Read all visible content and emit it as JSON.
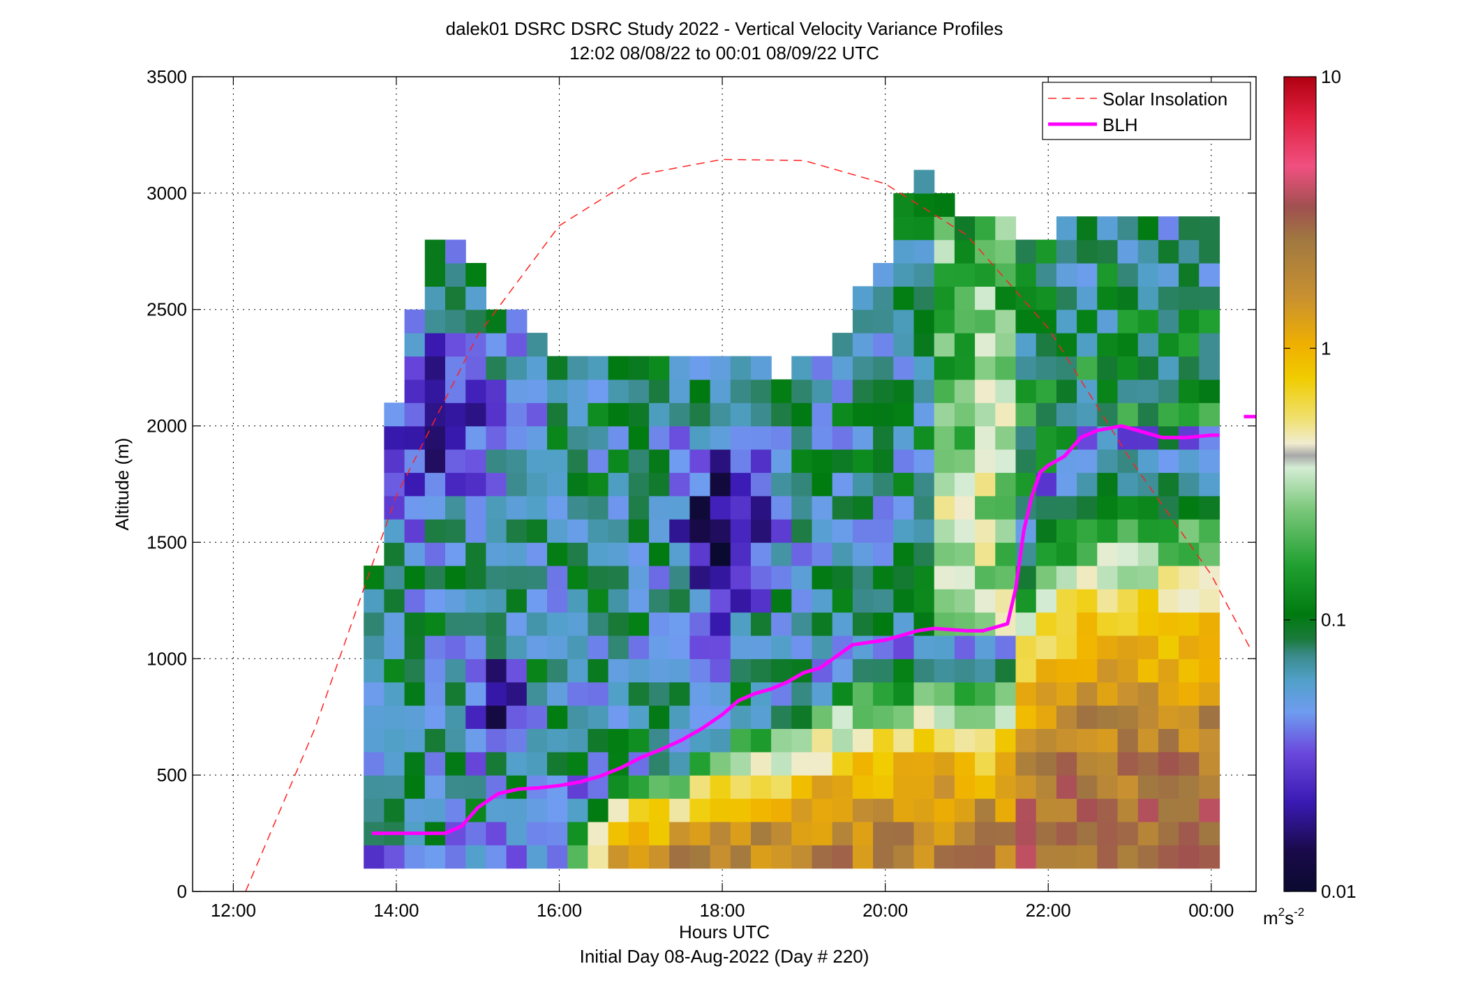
{
  "chart_data": {
    "type": "heatmap",
    "title": "dalek01 DSRC DSRC Study 2022 - Vertical Velocity Variance Profiles",
    "subtitle": "12:02 08/08/22 to 00:01 08/09/22  UTC",
    "xlabel": "Hours UTC",
    "xlabel2": "Initial Day 08-Aug-2022 (Day # 220)",
    "ylabel": "Altitude (m)",
    "xlim": [
      11.5,
      24.55
    ],
    "ylim": [
      0,
      3500
    ],
    "x_ticks": [
      12,
      14,
      16,
      18,
      20,
      22,
      24
    ],
    "x_tick_labels": [
      "12:00",
      "14:00",
      "16:00",
      "18:00",
      "20:00",
      "22:00",
      "00:00"
    ],
    "y_ticks": [
      0,
      500,
      1000,
      1500,
      2000,
      2500,
      3000,
      3500
    ],
    "y_tick_labels": [
      "0",
      "500",
      "1000",
      "1500",
      "2000",
      "2500",
      "3000",
      "3500"
    ],
    "grid": true,
    "colorbar": {
      "scale": "log",
      "range": [
        0.01,
        10
      ],
      "ticks": [
        0.01,
        0.1,
        1,
        10
      ],
      "tick_labels": [
        "0.01",
        "0.1",
        "1",
        "10"
      ],
      "unit_base": "m",
      "unit_sup1": "2",
      "unit_mid": "s",
      "unit_sup2": "-2"
    },
    "legend_position": "top-right",
    "legend": [
      {
        "name": "Solar Insolation",
        "color": "#ff2020",
        "style": "dashed"
      },
      {
        "name": "BLH",
        "color": "#ff00ff",
        "style": "solid"
      }
    ],
    "heatmap_grid": {
      "t_start_hour": 13.6,
      "t_step_hours": 0.25,
      "z_start_m": 100,
      "z_step_m": 100,
      "units": "log10 variance (m2 s-2)"
    },
    "series": [
      {
        "name": "BLH",
        "x": [
          13.7,
          14.0,
          14.3,
          14.6,
          14.8,
          15.0,
          15.25,
          15.5,
          15.75,
          16.0,
          16.25,
          16.5,
          16.75,
          17.0,
          17.25,
          17.5,
          17.75,
          18.0,
          18.2,
          18.4,
          18.6,
          18.8,
          19.0,
          19.2,
          19.4,
          19.6,
          19.8,
          20.0,
          20.2,
          20.4,
          20.6,
          20.8,
          21.0,
          21.2,
          21.4,
          21.5,
          21.6,
          21.7,
          21.8,
          21.9,
          22.0,
          22.2,
          22.4,
          22.6,
          22.9,
          23.1,
          23.4,
          23.7,
          24.0,
          24.1
        ],
        "y": [
          250,
          250,
          250,
          250,
          280,
          360,
          420,
          440,
          445,
          455,
          470,
          495,
          530,
          575,
          610,
          650,
          700,
          760,
          820,
          850,
          870,
          900,
          940,
          960,
          1010,
          1060,
          1070,
          1080,
          1100,
          1120,
          1130,
          1125,
          1120,
          1120,
          1140,
          1150,
          1300,
          1550,
          1700,
          1800,
          1830,
          1870,
          1950,
          1980,
          2000,
          1980,
          1950,
          1950,
          1960,
          1960
        ]
      },
      {
        "name": "Solar Insolation",
        "x": [
          12.15,
          13.0,
          14.0,
          15.0,
          16.0,
          17.0,
          18.0,
          19.0,
          20.0,
          21.0,
          22.0,
          23.0,
          24.0,
          24.5
        ],
        "y": [
          0,
          700,
          1700,
          2390,
          2860,
          3080,
          3145,
          3140,
          3040,
          2820,
          2420,
          1860,
          1360,
          1030
        ]
      }
    ],
    "blh_tail": {
      "x": [
        24.4,
        24.55
      ],
      "y": [
        2040,
        2040
      ]
    }
  }
}
